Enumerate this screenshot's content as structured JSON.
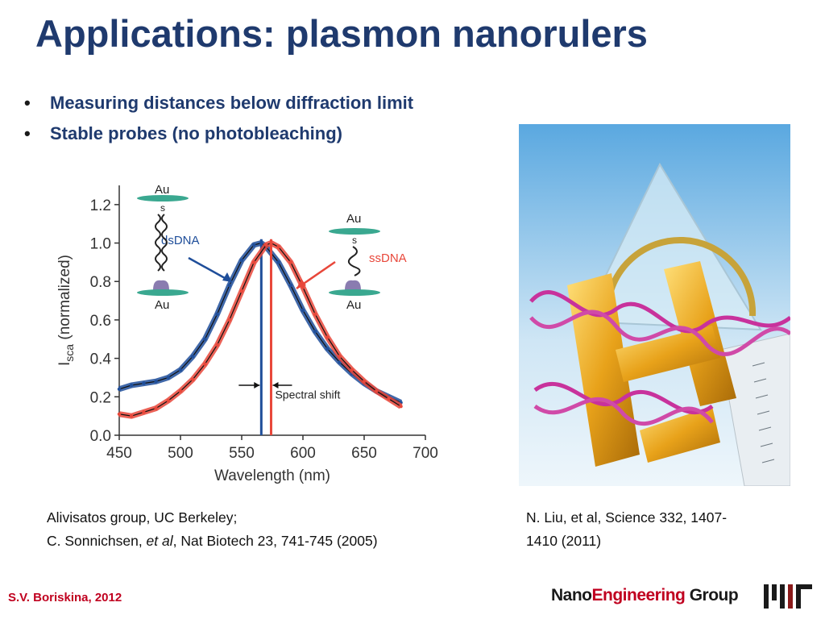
{
  "slide": {
    "title": "Applications: plasmon nanorulers",
    "bullets": [
      "Measuring distances below diffraction limit",
      "Stable probes (no photobleaching)"
    ],
    "bullet_glyph": "•",
    "caption_left": {
      "line1": "Alivisatos group, UC Berkeley;",
      "line2_pre": "C. Sonnichsen, ",
      "line2_em": "et al",
      "line2_post": ", Nat Biotech 23, 741-745 (2005)"
    },
    "caption_right": {
      "line1": "N. Liu, et al,  Science 332, 1407-",
      "line2": "1410 (2011)"
    },
    "footer_author": "S.V. Boriskina, 2012",
    "footer_group": {
      "part1": "Nano",
      "part2": "Engineering",
      "part3": " Group"
    },
    "colors": {
      "title": "#1f3a6e",
      "accent_red": "#c0001f",
      "series_blue": "#1f4e9a",
      "series_red": "#e8473a"
    }
  },
  "chart_data": {
    "type": "scatter",
    "xlabel": "Wavelength (nm)",
    "ylabel_main": "I",
    "ylabel_sub": "sca",
    "ylabel_post": " (normalized)",
    "xlim": [
      450,
      700
    ],
    "ylim": [
      0.0,
      1.3
    ],
    "xticks": [
      450,
      500,
      550,
      600,
      650,
      700
    ],
    "yticks": [
      0.0,
      0.2,
      0.4,
      0.6,
      0.8,
      1.0,
      1.2
    ],
    "ytick_labels": [
      "0.0",
      "0.2",
      "0.4",
      "0.6",
      "0.8",
      "1.0",
      "1.2"
    ],
    "series": [
      {
        "name": "dsDNA",
        "color": "#1f4e9a",
        "peak": 566,
        "x": [
          450,
          460,
          470,
          480,
          490,
          500,
          510,
          520,
          530,
          540,
          550,
          560,
          566,
          570,
          580,
          590,
          600,
          610,
          620,
          630,
          640,
          650,
          660,
          670,
          680
        ],
        "y": [
          0.24,
          0.26,
          0.27,
          0.28,
          0.3,
          0.34,
          0.41,
          0.5,
          0.63,
          0.78,
          0.91,
          0.99,
          1.0,
          0.98,
          0.9,
          0.78,
          0.65,
          0.54,
          0.45,
          0.38,
          0.32,
          0.27,
          0.23,
          0.2,
          0.17
        ]
      },
      {
        "name": "ssDNA",
        "color": "#e8473a",
        "peak": 574,
        "x": [
          450,
          460,
          470,
          480,
          490,
          500,
          510,
          520,
          530,
          540,
          550,
          560,
          570,
          574,
          580,
          590,
          600,
          610,
          620,
          630,
          640,
          650,
          660,
          670,
          680
        ],
        "y": [
          0.11,
          0.1,
          0.12,
          0.14,
          0.18,
          0.23,
          0.29,
          0.37,
          0.47,
          0.6,
          0.75,
          0.9,
          0.99,
          1.0,
          0.98,
          0.9,
          0.77,
          0.63,
          0.51,
          0.41,
          0.34,
          0.28,
          0.23,
          0.19,
          0.15
        ]
      }
    ],
    "annotations": {
      "shift_label": "Spectral shift",
      "au_label": "Au",
      "s_label": "s"
    }
  }
}
